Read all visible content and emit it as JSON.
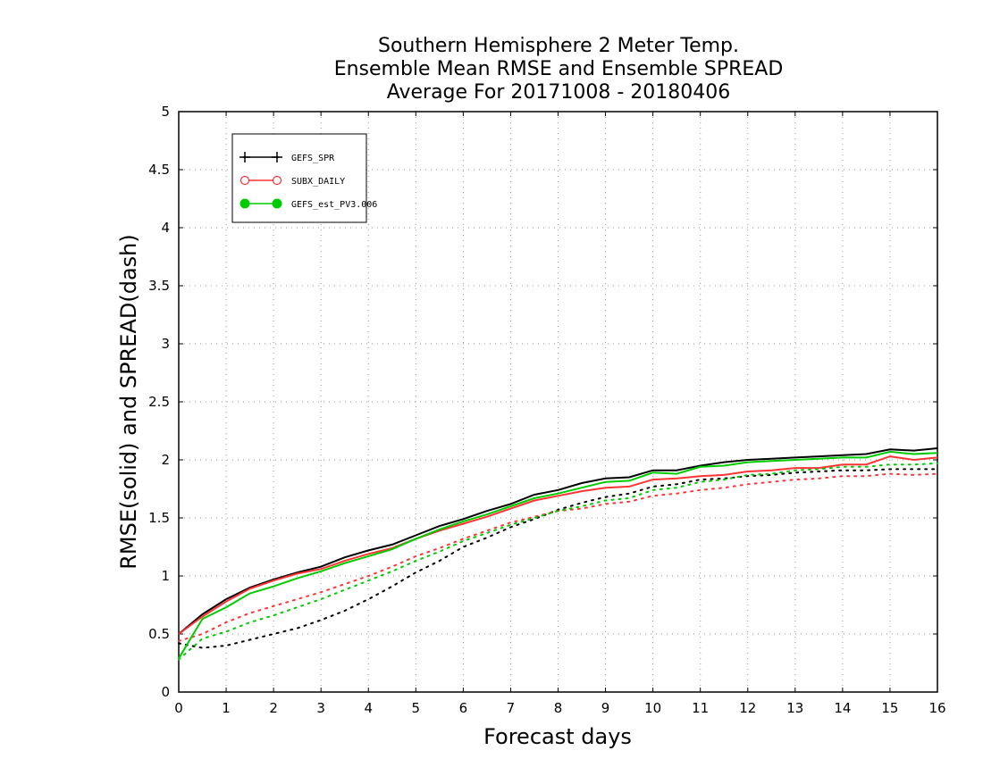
{
  "chart_data": {
    "type": "line",
    "title": [
      "Southern Hemisphere 2 Meter Temp.",
      "Ensemble Mean RMSE and Ensemble SPREAD",
      "Average For 20171008 - 20180406"
    ],
    "xlabel": "Forecast days",
    "ylabel": "RMSE(solid) and SPREAD(dash)",
    "xlim": [
      0,
      16
    ],
    "ylim": [
      0,
      5
    ],
    "xticks": [
      "0",
      "1",
      "2",
      "3",
      "4",
      "5",
      "6",
      "7",
      "8",
      "9",
      "10",
      "11",
      "12",
      "13",
      "14",
      "15",
      "16"
    ],
    "yticks": [
      "0",
      "0.5",
      "1",
      "1.5",
      "2",
      "2.5",
      "3",
      "3.5",
      "4",
      "4.5",
      "5"
    ],
    "grid": true,
    "legend_position": "top-left",
    "x": [
      0,
      0.5,
      1,
      1.5,
      2,
      2.5,
      3,
      3.5,
      4,
      4.5,
      5,
      5.5,
      6,
      6.5,
      7,
      7.5,
      8,
      8.5,
      9,
      9.5,
      10,
      10.5,
      11,
      11.5,
      12,
      12.5,
      13,
      13.5,
      14,
      14.5,
      15,
      15.5,
      16
    ],
    "series": [
      {
        "name": "GEFS_SPR",
        "color": "#000000",
        "marker": "plus",
        "rmse": [
          0.5,
          0.67,
          0.8,
          0.9,
          0.97,
          1.03,
          1.08,
          1.16,
          1.22,
          1.27,
          1.35,
          1.43,
          1.49,
          1.56,
          1.62,
          1.7,
          1.74,
          1.8,
          1.84,
          1.85,
          1.91,
          1.91,
          1.95,
          1.98,
          2.0,
          2.01,
          2.02,
          2.03,
          2.04,
          2.05,
          2.09,
          2.08,
          2.1
        ],
        "spread": [
          0.42,
          0.38,
          0.4,
          0.45,
          0.5,
          0.55,
          0.62,
          0.7,
          0.8,
          0.91,
          1.03,
          1.13,
          1.25,
          1.33,
          1.42,
          1.49,
          1.57,
          1.63,
          1.68,
          1.71,
          1.77,
          1.79,
          1.83,
          1.84,
          1.86,
          1.87,
          1.89,
          1.9,
          1.91,
          1.91,
          1.92,
          1.92,
          1.92
        ]
      },
      {
        "name": "SUBX_DAILY",
        "color": "#ff3333",
        "marker": "open-circle",
        "rmse": [
          0.5,
          0.65,
          0.78,
          0.89,
          0.96,
          1.02,
          1.06,
          1.13,
          1.19,
          1.24,
          1.32,
          1.39,
          1.45,
          1.51,
          1.58,
          1.65,
          1.69,
          1.73,
          1.76,
          1.77,
          1.83,
          1.84,
          1.86,
          1.87,
          1.9,
          1.91,
          1.93,
          1.93,
          1.96,
          1.96,
          2.03,
          2.0,
          2.02
        ],
        "spread": [
          0.44,
          0.5,
          0.6,
          0.68,
          0.74,
          0.8,
          0.86,
          0.93,
          1.0,
          1.08,
          1.17,
          1.24,
          1.32,
          1.39,
          1.46,
          1.51,
          1.56,
          1.58,
          1.62,
          1.64,
          1.69,
          1.71,
          1.74,
          1.76,
          1.79,
          1.81,
          1.83,
          1.84,
          1.86,
          1.86,
          1.88,
          1.87,
          1.88
        ]
      },
      {
        "name": "GEFS_est_PV3.006",
        "color": "#00cc00",
        "marker": "filled-circle",
        "rmse": [
          0.29,
          0.63,
          0.73,
          0.85,
          0.91,
          0.98,
          1.04,
          1.11,
          1.17,
          1.23,
          1.32,
          1.4,
          1.47,
          1.53,
          1.6,
          1.67,
          1.71,
          1.76,
          1.81,
          1.82,
          1.89,
          1.88,
          1.94,
          1.95,
          1.98,
          1.99,
          2.0,
          2.01,
          2.02,
          2.02,
          2.07,
          2.05,
          2.06
        ],
        "spread": [
          0.28,
          0.46,
          0.52,
          0.6,
          0.66,
          0.73,
          0.8,
          0.88,
          0.96,
          1.04,
          1.13,
          1.21,
          1.3,
          1.37,
          1.44,
          1.5,
          1.56,
          1.6,
          1.65,
          1.67,
          1.74,
          1.76,
          1.81,
          1.83,
          1.87,
          1.88,
          1.91,
          1.92,
          1.94,
          1.94,
          1.96,
          1.96,
          1.97
        ]
      }
    ]
  }
}
